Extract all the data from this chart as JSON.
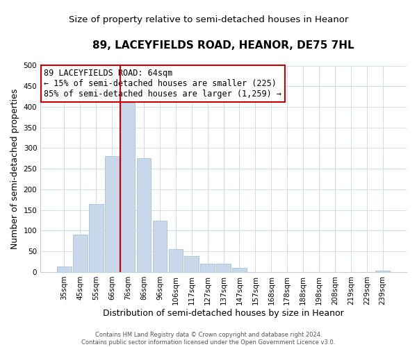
{
  "title": "89, LACEYFIELDS ROAD, HEANOR, DE75 7HL",
  "subtitle": "Size of property relative to semi-detached houses in Heanor",
  "xlabel": "Distribution of semi-detached houses by size in Heanor",
  "ylabel": "Number of semi-detached properties",
  "footer_line1": "Contains HM Land Registry data © Crown copyright and database right 2024.",
  "footer_line2": "Contains public sector information licensed under the Open Government Licence v3.0.",
  "annotation_line1": "89 LACEYFIELDS ROAD: 64sqm",
  "annotation_line2": "← 15% of semi-detached houses are smaller (225)",
  "annotation_line3": "85% of semi-detached houses are larger (1,259) →",
  "bar_labels": [
    "35sqm",
    "45sqm",
    "55sqm",
    "66sqm",
    "76sqm",
    "86sqm",
    "96sqm",
    "106sqm",
    "117sqm",
    "127sqm",
    "137sqm",
    "147sqm",
    "157sqm",
    "168sqm",
    "178sqm",
    "188sqm",
    "198sqm",
    "208sqm",
    "219sqm",
    "229sqm",
    "239sqm"
  ],
  "bar_values": [
    13,
    90,
    165,
    280,
    410,
    275,
    125,
    55,
    38,
    20,
    20,
    10,
    0,
    0,
    0,
    0,
    0,
    0,
    0,
    0,
    4
  ],
  "bar_color": "#c8d8ea",
  "bar_edge_color": "#a8c0d8",
  "vline_x": 3.5,
  "vline_color": "#cc0000",
  "ylim": [
    0,
    500
  ],
  "yticks": [
    0,
    50,
    100,
    150,
    200,
    250,
    300,
    350,
    400,
    450,
    500
  ],
  "grid_color": "#d0dcea",
  "annotation_box_edge": "#cc0000",
  "title_fontsize": 11,
  "subtitle_fontsize": 9.5,
  "axis_label_fontsize": 9,
  "tick_fontsize": 7.5,
  "annotation_fontsize": 8.5,
  "footer_fontsize": 6
}
